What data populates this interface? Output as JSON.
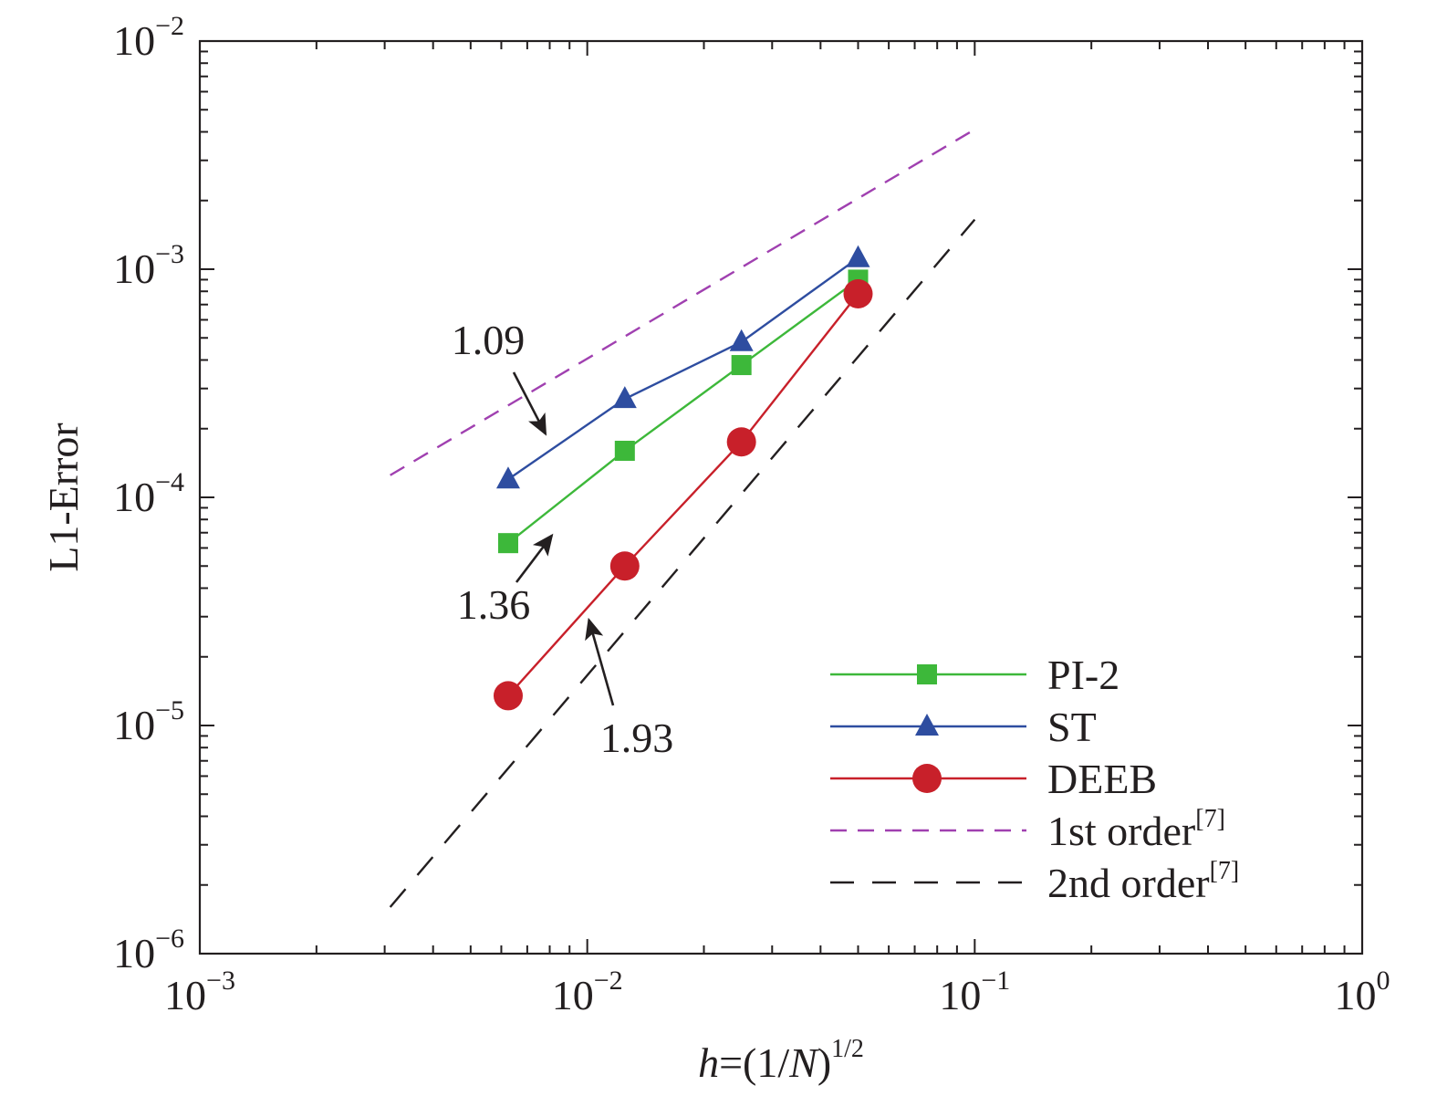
{
  "chart_data": {
    "type": "line",
    "xscale": "log",
    "yscale": "log",
    "xlim": [
      0.001,
      1
    ],
    "ylim": [
      1e-06,
      0.01
    ],
    "grid": false,
    "legend_position": "bottom-right",
    "xlabel": {
      "italic": "h",
      "rest": "=(1/",
      "italic2": "N",
      "rest2": ")",
      "sup": "1/2"
    },
    "ylabel": "L1-Error",
    "xticks": [
      {
        "value": 0.001,
        "base": "10",
        "exp": "−3"
      },
      {
        "value": 0.01,
        "base": "10",
        "exp": "−2"
      },
      {
        "value": 0.1,
        "base": "10",
        "exp": "−1"
      },
      {
        "value": 1,
        "base": "10",
        "exp": "0"
      }
    ],
    "yticks": [
      {
        "value": 1e-06,
        "base": "10",
        "exp": "−6"
      },
      {
        "value": 1e-05,
        "base": "10",
        "exp": "−5"
      },
      {
        "value": 0.0001,
        "base": "10",
        "exp": "−4"
      },
      {
        "value": 0.001,
        "base": "10",
        "exp": "−3"
      },
      {
        "value": 0.01,
        "base": "10",
        "exp": "−2"
      }
    ],
    "series": [
      {
        "name": "PI-2",
        "color": "#3db83a",
        "marker": "square",
        "dash": "solid",
        "x": [
          0.00625,
          0.0125,
          0.025,
          0.05
        ],
        "y": [
          6.3e-05,
          0.00016,
          0.00038,
          0.0009
        ]
      },
      {
        "name": "ST",
        "color": "#2e4da0",
        "marker": "triangle",
        "dash": "solid",
        "x": [
          0.00625,
          0.0125,
          0.025,
          0.05
        ],
        "y": [
          0.00012,
          0.00027,
          0.00048,
          0.00112
        ]
      },
      {
        "name": "DEEB",
        "color": "#c8202a",
        "marker": "circle",
        "dash": "solid",
        "x": [
          0.00625,
          0.0125,
          0.025,
          0.05
        ],
        "y": [
          1.35e-05,
          5e-05,
          0.000175,
          0.00078
        ]
      },
      {
        "name": "1st order",
        "name_sup": "[7]",
        "color": "#a040b0",
        "marker": "none",
        "dash": "dashed-short",
        "x": [
          0.0031,
          0.1
        ],
        "y": [
          0.000125,
          0.0041
        ]
      },
      {
        "name": "2nd order",
        "name_sup": "[7]",
        "color": "#231f20",
        "marker": "none",
        "dash": "dashed-long",
        "x": [
          0.0031,
          0.1
        ],
        "y": [
          1.6e-06,
          0.00165
        ]
      }
    ],
    "annotations": [
      {
        "text": "1.09",
        "arrow_to": [
          0.0078,
          0.00019
        ]
      },
      {
        "text": "1.36",
        "arrow_to": [
          0.0081,
          6.8e-05
        ]
      },
      {
        "text": "1.93",
        "arrow_to": [
          0.0101,
          2.9e-05
        ]
      }
    ]
  }
}
